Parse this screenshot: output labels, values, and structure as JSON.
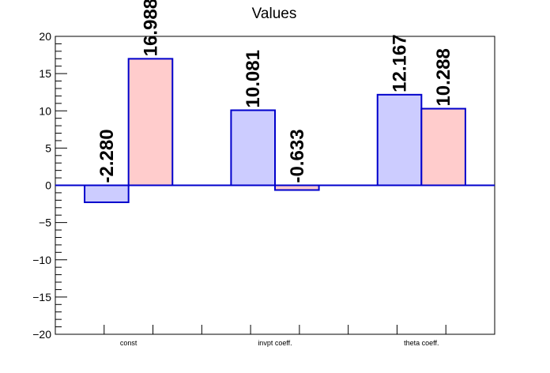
{
  "chart_data": {
    "type": "bar",
    "title": "Values",
    "categories": [
      "const",
      "invpt coeff.",
      "theta coeff."
    ],
    "series": [
      {
        "values": [
          -2.28,
          10.081,
          12.167
        ],
        "color": "#ccccff"
      },
      {
        "values": [
          16.988,
          -0.633,
          10.288
        ],
        "color": "#ffcccc"
      }
    ],
    "data_labels": [
      [
        "-2.280",
        "10.081",
        "12.167"
      ],
      [
        "16.988",
        "-0.633",
        "10.288"
      ]
    ],
    "bar_outline_color": "#0000cc",
    "ylim": [
      -20,
      20
    ],
    "yticks": [
      -20,
      -15,
      -10,
      -5,
      0,
      5,
      10,
      15,
      20
    ],
    "ytick_labels": [
      "−20",
      "−15",
      "−10",
      "−5",
      "0",
      "5",
      "10",
      "15",
      "20"
    ],
    "xlabel": "",
    "ylabel": "",
    "grid": false,
    "legend": "none"
  }
}
